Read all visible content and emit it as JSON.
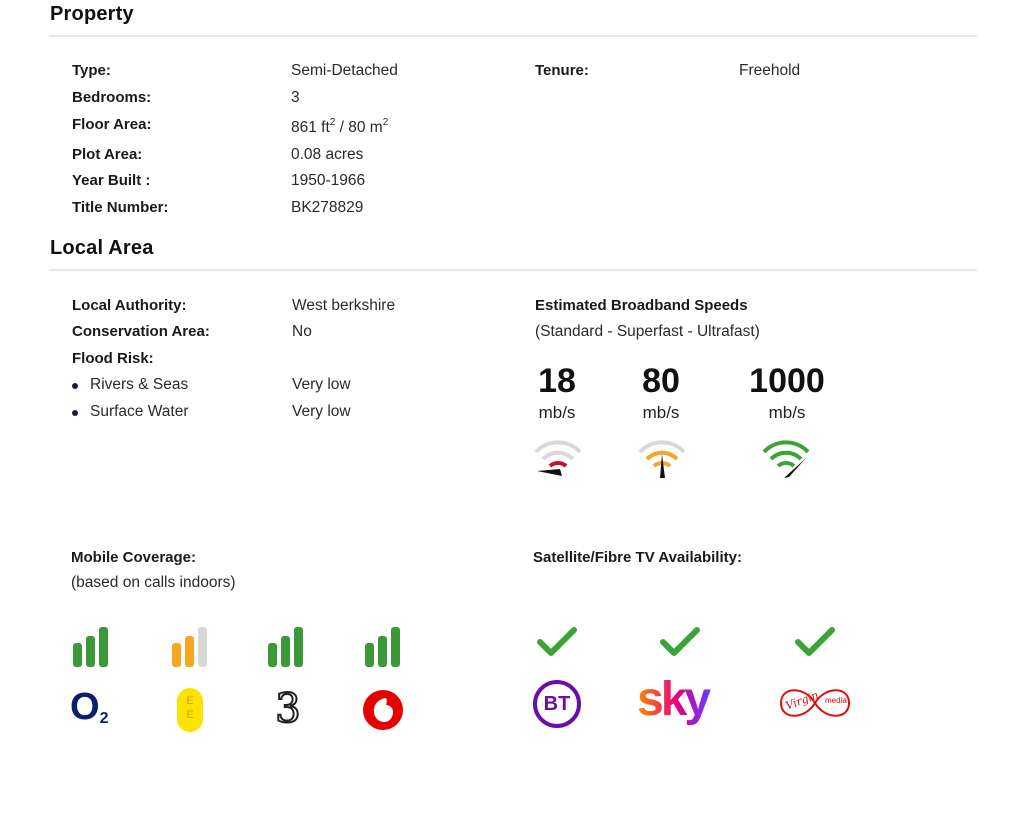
{
  "property": {
    "heading": "Property",
    "rows": [
      {
        "label": "Type:",
        "value": "Semi-Detached"
      },
      {
        "label": "Bedrooms:",
        "value": "3"
      },
      {
        "label": "Floor Area:",
        "value_a": "861 ft",
        "sup_a": "2",
        "value_sep": " / 80 m",
        "sup_b": "2"
      },
      {
        "label": "Plot Area:",
        "value": "0.08 acres"
      },
      {
        "label": "Year Built :",
        "value": "1950-1966"
      },
      {
        "label": "Title Number:",
        "value": "BK278829"
      }
    ],
    "tenure_label": "Tenure:",
    "tenure_value": "Freehold"
  },
  "local_area": {
    "heading": "Local Area",
    "local_authority_label": "Local Authority:",
    "local_authority_value": "West berkshire",
    "conservation_label": "Conservation Area:",
    "conservation_value": "No",
    "flood_label": "Flood Risk:",
    "flood_items": [
      {
        "label": "Rivers & Seas",
        "value": "Very low"
      },
      {
        "label": "Surface Water",
        "value": "Very low"
      }
    ],
    "broadband_title": "Estimated Broadband Speeds",
    "broadband_subtitle": "(Standard - Superfast - Ultrafast)",
    "speeds": [
      {
        "value": "18",
        "unit": "mb/s",
        "color": "#c8102e",
        "level": 0.2
      },
      {
        "value": "80",
        "unit": "mb/s",
        "color": "#f5a623",
        "level": 0.6
      },
      {
        "value": "1000",
        "unit": "mb/s",
        "color": "#3aa535",
        "level": 1.0
      }
    ]
  },
  "mobile": {
    "title": "Mobile Coverage:",
    "subtitle": "(based on calls indoors)",
    "operators": [
      {
        "name": "O2",
        "logo_text": "O",
        "logo_sub": "2",
        "signal_color": "#3a9a3a",
        "signal_level": 3
      },
      {
        "name": "EE",
        "logo_text": "E",
        "logo_sub": "E",
        "signal_color": "#f5a623",
        "signal_level": 2
      },
      {
        "name": "Three",
        "logo_text": "3",
        "signal_color": "#3a9a3a",
        "signal_level": 3
      },
      {
        "name": "Vodafone",
        "signal_color": "#3a9a3a",
        "signal_level": 3
      }
    ]
  },
  "tv": {
    "title": "Satellite/Fibre TV Availability:",
    "providers": [
      {
        "name": "BT",
        "logo_text": "BT",
        "available": true
      },
      {
        "name": "Sky",
        "logo_text": "sky",
        "available": true
      },
      {
        "name": "Virgin Media",
        "logo_text": "Virgin",
        "logo_sub": "media",
        "available": true
      }
    ],
    "check_color": "#3aa535"
  }
}
